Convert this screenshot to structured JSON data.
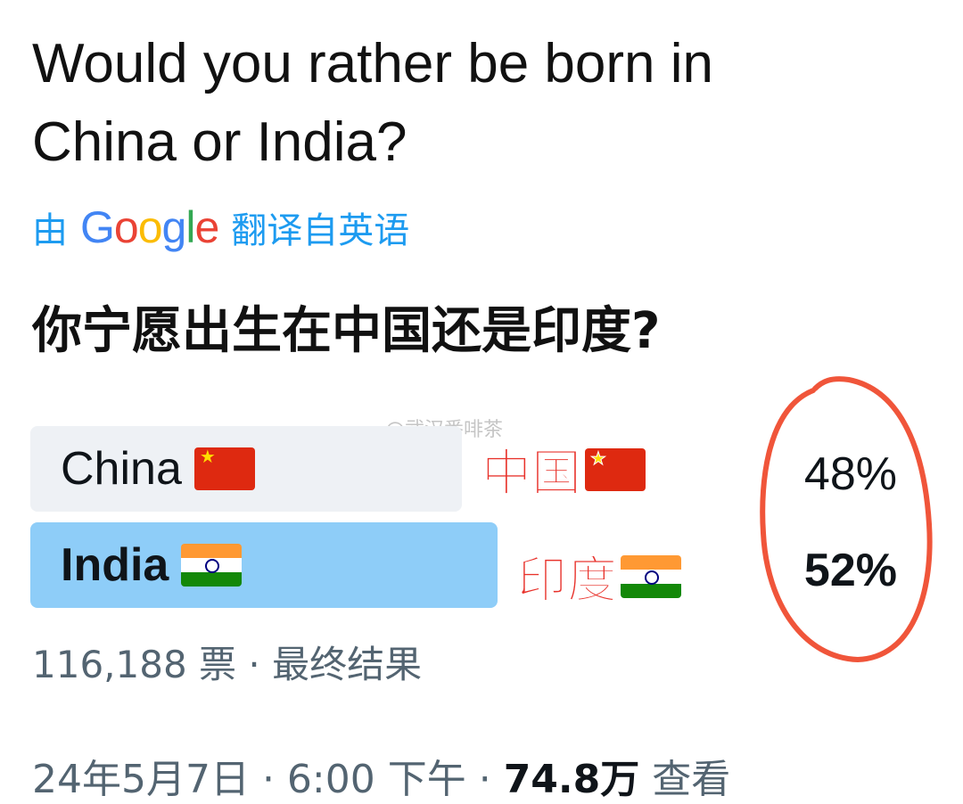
{
  "question_en": [
    "Would you rather be born in",
    "China or India?"
  ],
  "translation": {
    "prefix": "由",
    "brand": "Google",
    "suffix": "翻译自英语"
  },
  "question_zh": "你宁愿出生在中国还是印度?",
  "poll": {
    "options": [
      {
        "label": "China",
        "flag": "flag-cn",
        "annotation": "中国",
        "percent_text": "48%",
        "percent": 48,
        "winner": false
      },
      {
        "label": "India",
        "flag": "flag-in",
        "annotation": "印度",
        "percent_text": "52%",
        "percent": 52,
        "winner": true
      }
    ],
    "votes": "116,188 票",
    "separator": "·",
    "status": "最终结果"
  },
  "footer": {
    "date": "24年5月7日 · 6:00 下午 · ",
    "views": "74.8万",
    "views_label": " 查看"
  },
  "watermark": "@武汉番啡茶",
  "colors": {
    "accent": "#1d9bf0",
    "winner_bar": "#8ecdf8",
    "bar": "#eef1f5",
    "annotation": "#e8322b"
  }
}
